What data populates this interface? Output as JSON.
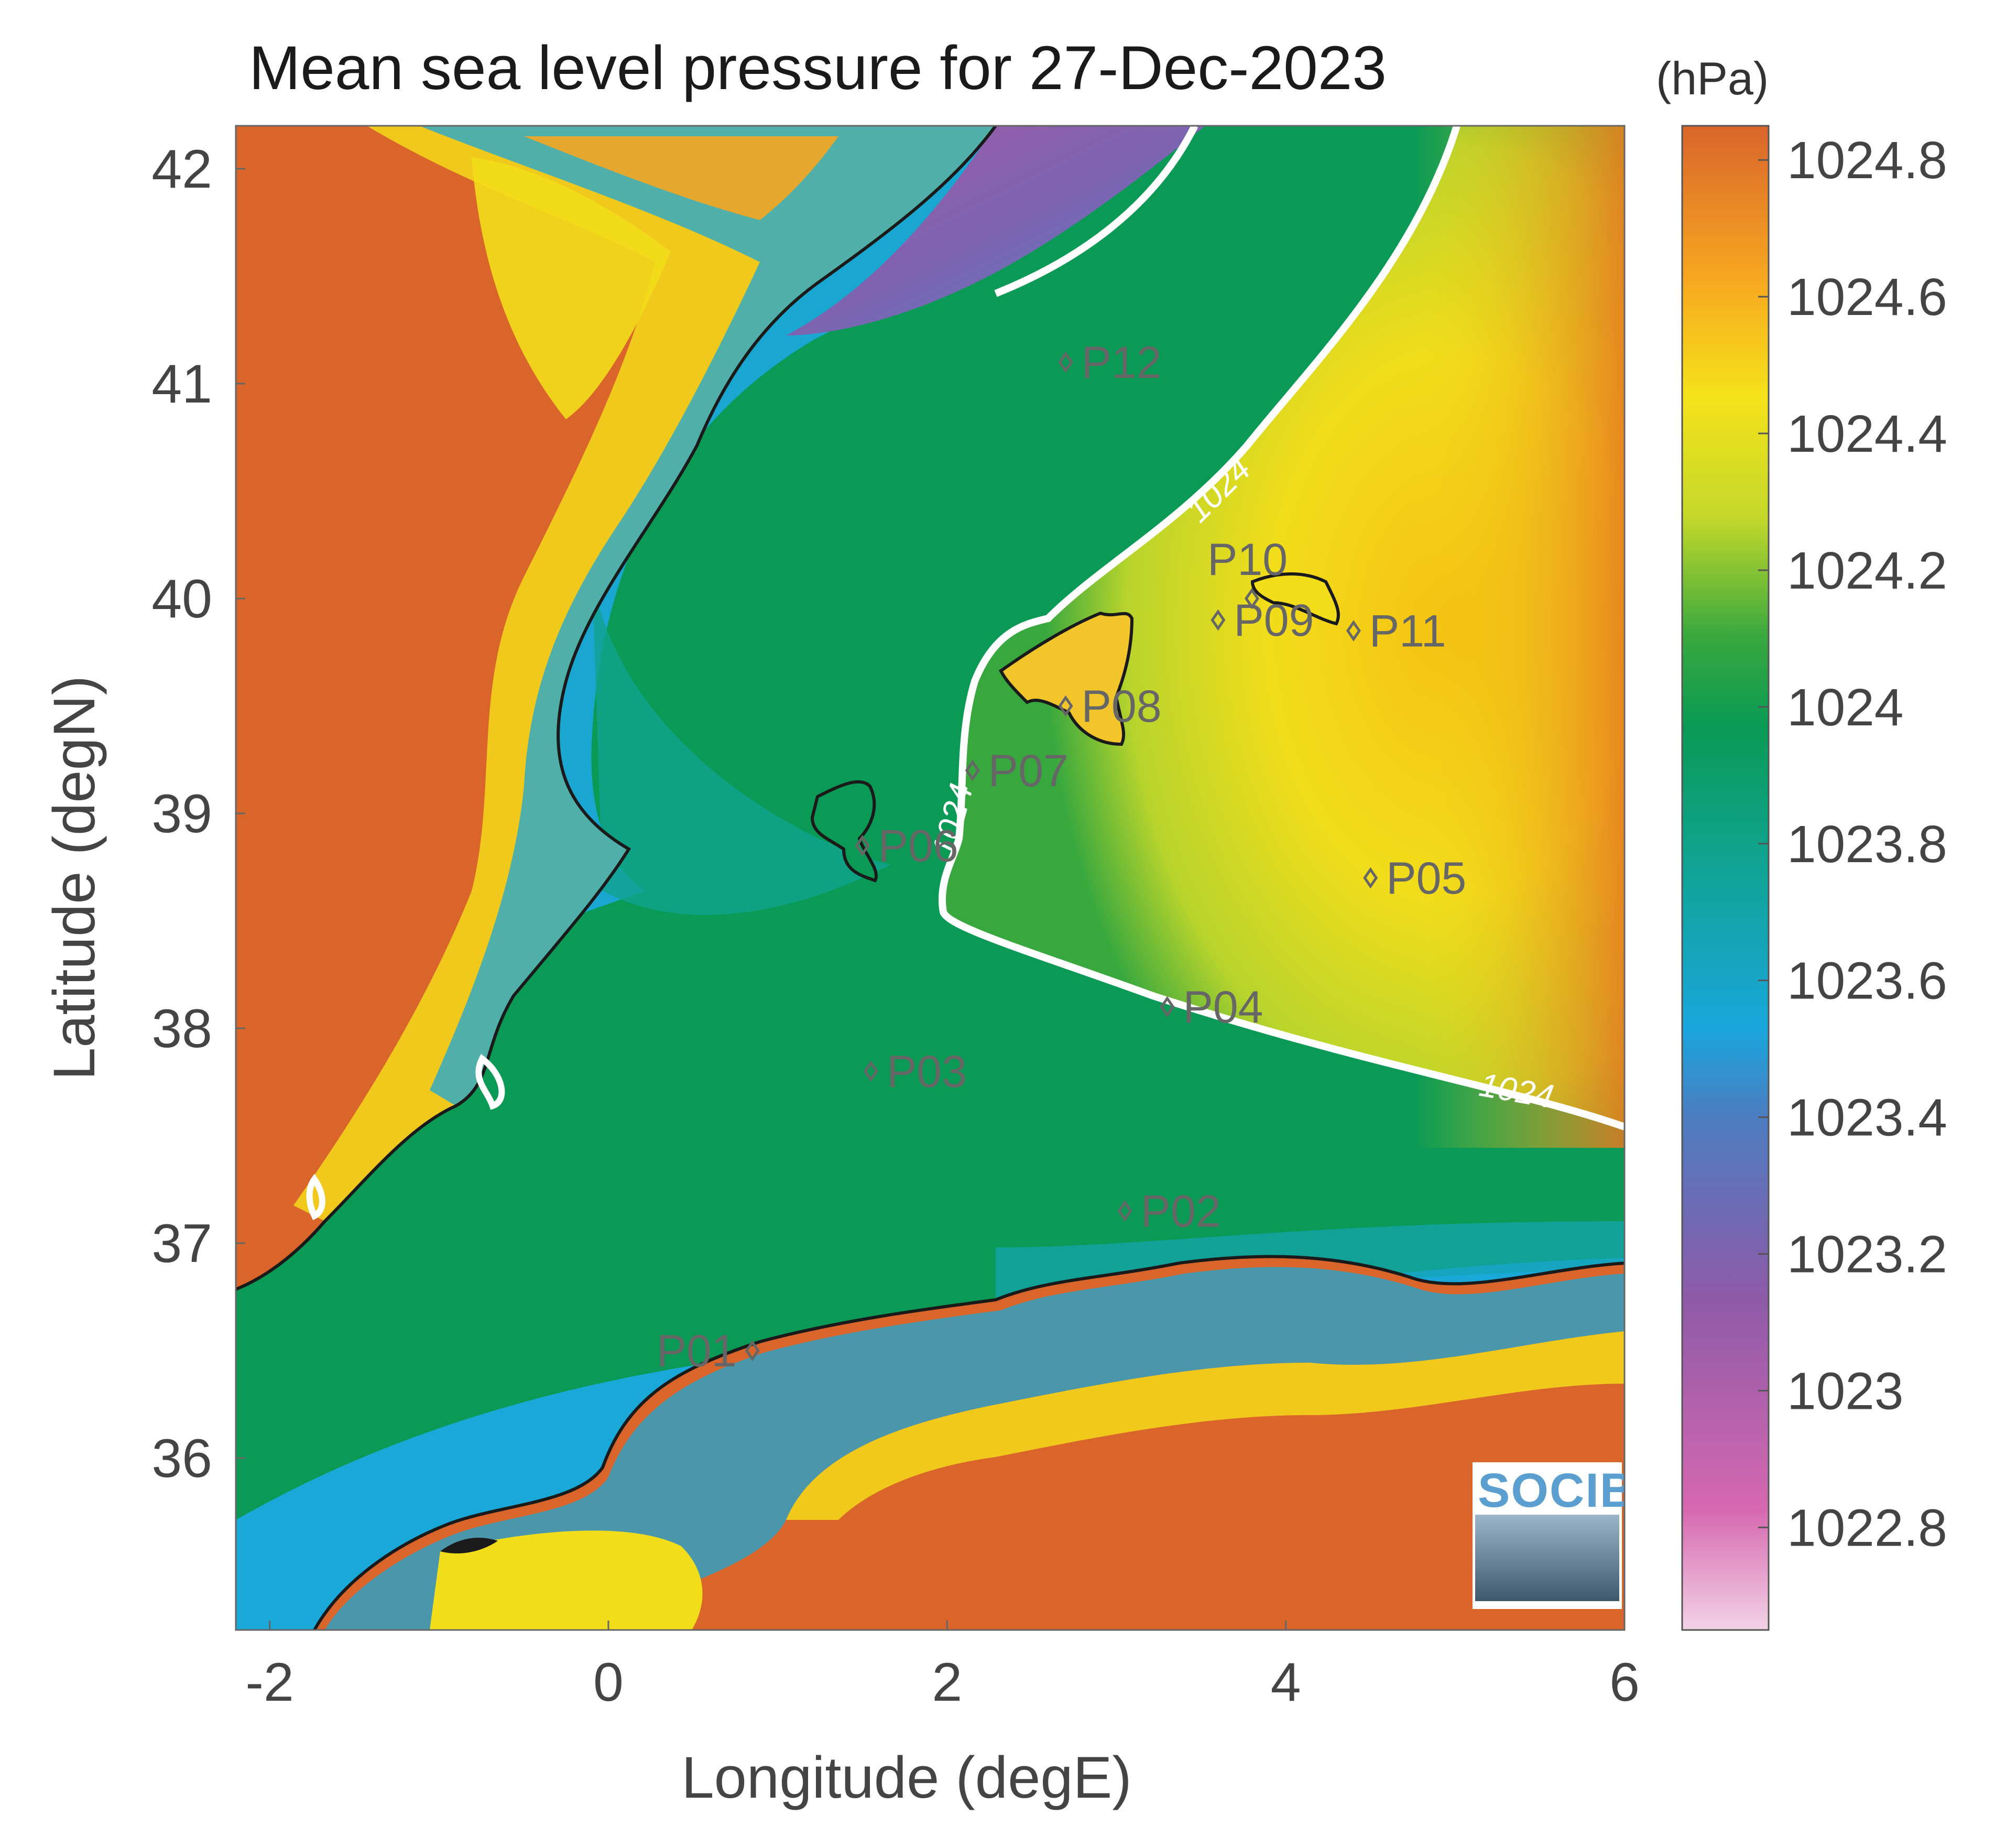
{
  "title": "Mean sea level pressure for 27-Dec-2023",
  "units": "(hPa)",
  "xlabel": "Longitude (degE)",
  "ylabel": "Latitude (degN)",
  "x_ticks": [
    "-2",
    "0",
    "2",
    "4",
    "6"
  ],
  "y_ticks": [
    "42",
    "41",
    "40",
    "39",
    "38",
    "37",
    "36"
  ],
  "colorbar_ticks": [
    "1024.8",
    "1024.6",
    "1024.4",
    "1024.2",
    "1024",
    "1023.8",
    "1023.6",
    "1023.4",
    "1023.2",
    "1023",
    "1022.8"
  ],
  "contour_label": "1024",
  "logo_text": "SOCIB",
  "colors": {
    "land_high": "#d9652b",
    "sea_low": "#1aa8d8",
    "sea_mid": "#0a9a55",
    "high_east": "#f2dd1a",
    "coastline": "#1a1a1a",
    "contour": "#ffffff"
  },
  "map_data": {
    "type": "heatmap",
    "lon_range": [
      -2.2,
      6
    ],
    "lat_range": [
      35.2,
      42.2
    ],
    "color_range": [
      1022.65,
      1024.85
    ],
    "contour_level": 1024,
    "stations": [
      {
        "name": "P01",
        "lon": 0.85,
        "lat": 36.5
      },
      {
        "name": "P02",
        "lon": 3.05,
        "lat": 37.15
      },
      {
        "name": "P03",
        "lon": 1.55,
        "lat": 37.8
      },
      {
        "name": "P04",
        "lon": 3.3,
        "lat": 38.1
      },
      {
        "name": "P05",
        "lon": 4.5,
        "lat": 38.7
      },
      {
        "name": "P06",
        "lon": 1.5,
        "lat": 38.85
      },
      {
        "name": "P07",
        "lon": 2.15,
        "lat": 39.2
      },
      {
        "name": "P08",
        "lon": 2.7,
        "lat": 39.5
      },
      {
        "name": "P09",
        "lon": 3.6,
        "lat": 39.9
      },
      {
        "name": "P10",
        "lon": 3.8,
        "lat": 40.0
      },
      {
        "name": "P11",
        "lon": 4.4,
        "lat": 39.85
      },
      {
        "name": "P12",
        "lon": 2.7,
        "lat": 41.1
      }
    ]
  }
}
